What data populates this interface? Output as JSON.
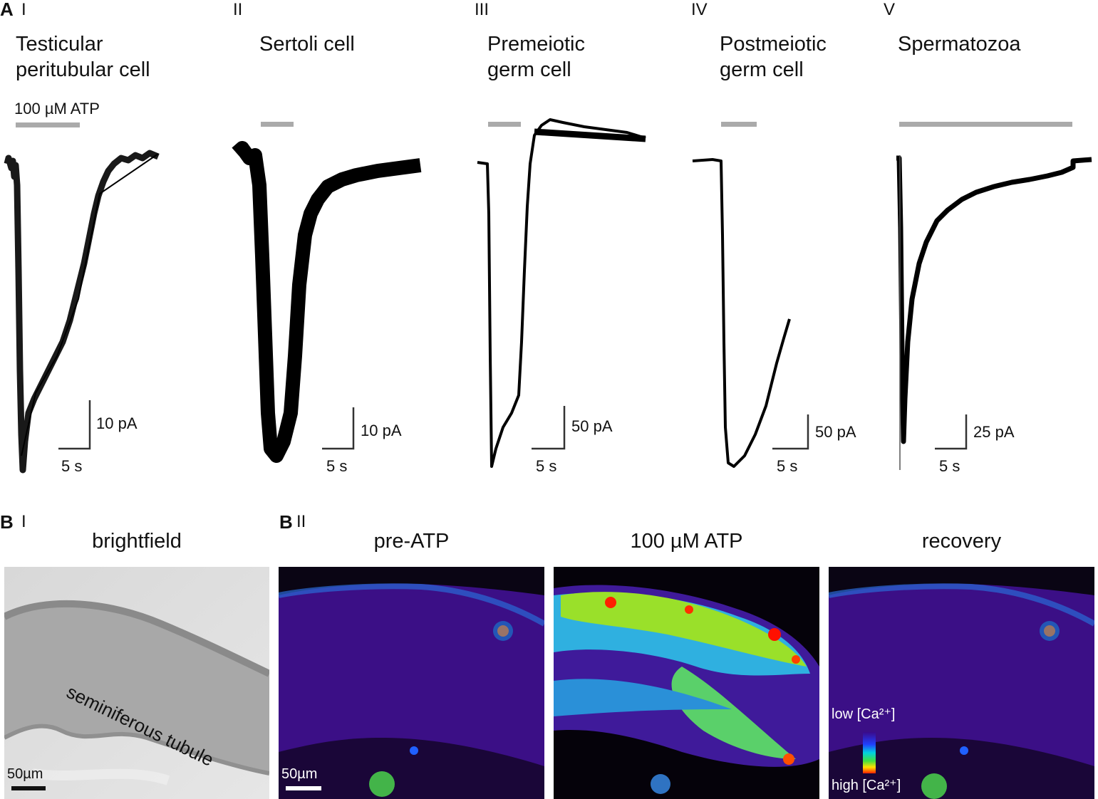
{
  "panel_a": {
    "letter": "A",
    "stimulus_label": "100 µM ATP",
    "columns": [
      {
        "roman": "I",
        "title": "Testicular\nperitubular cell",
        "scale_y": "10 pA",
        "scale_x": "5 s"
      },
      {
        "roman": "II",
        "title": "Sertoli cell",
        "scale_y": "10 pA",
        "scale_x": "5 s"
      },
      {
        "roman": "III",
        "title": "Premeiotic\ngerm cell",
        "scale_y": "50 pA",
        "scale_x": "5 s"
      },
      {
        "roman": "IV",
        "title": "Postmeiotic\ngerm cell",
        "scale_y": "50 pA",
        "scale_x": "5 s"
      },
      {
        "roman": "V",
        "title": "Spermatozoa",
        "scale_y": "25 pA",
        "scale_x": "5 s"
      }
    ],
    "stimulus_color": "#aaaaaa",
    "trace_color": "#000000"
  },
  "panel_b": {
    "letter_i": "B",
    "roman_i": "I",
    "letter_ii": "B",
    "roman_ii": "II",
    "brightfield_title": "brightfield",
    "tubule_label": "seminiferous tubule",
    "scalebar_label": "50µm",
    "scalebar_label_2": "50µm",
    "pre_title": "pre-ATP",
    "atp_title": "100 µM ATP",
    "recovery_title": "recovery",
    "colorbar_low": "low [Ca²⁺]",
    "colorbar_high": "high [Ca²⁺]"
  }
}
